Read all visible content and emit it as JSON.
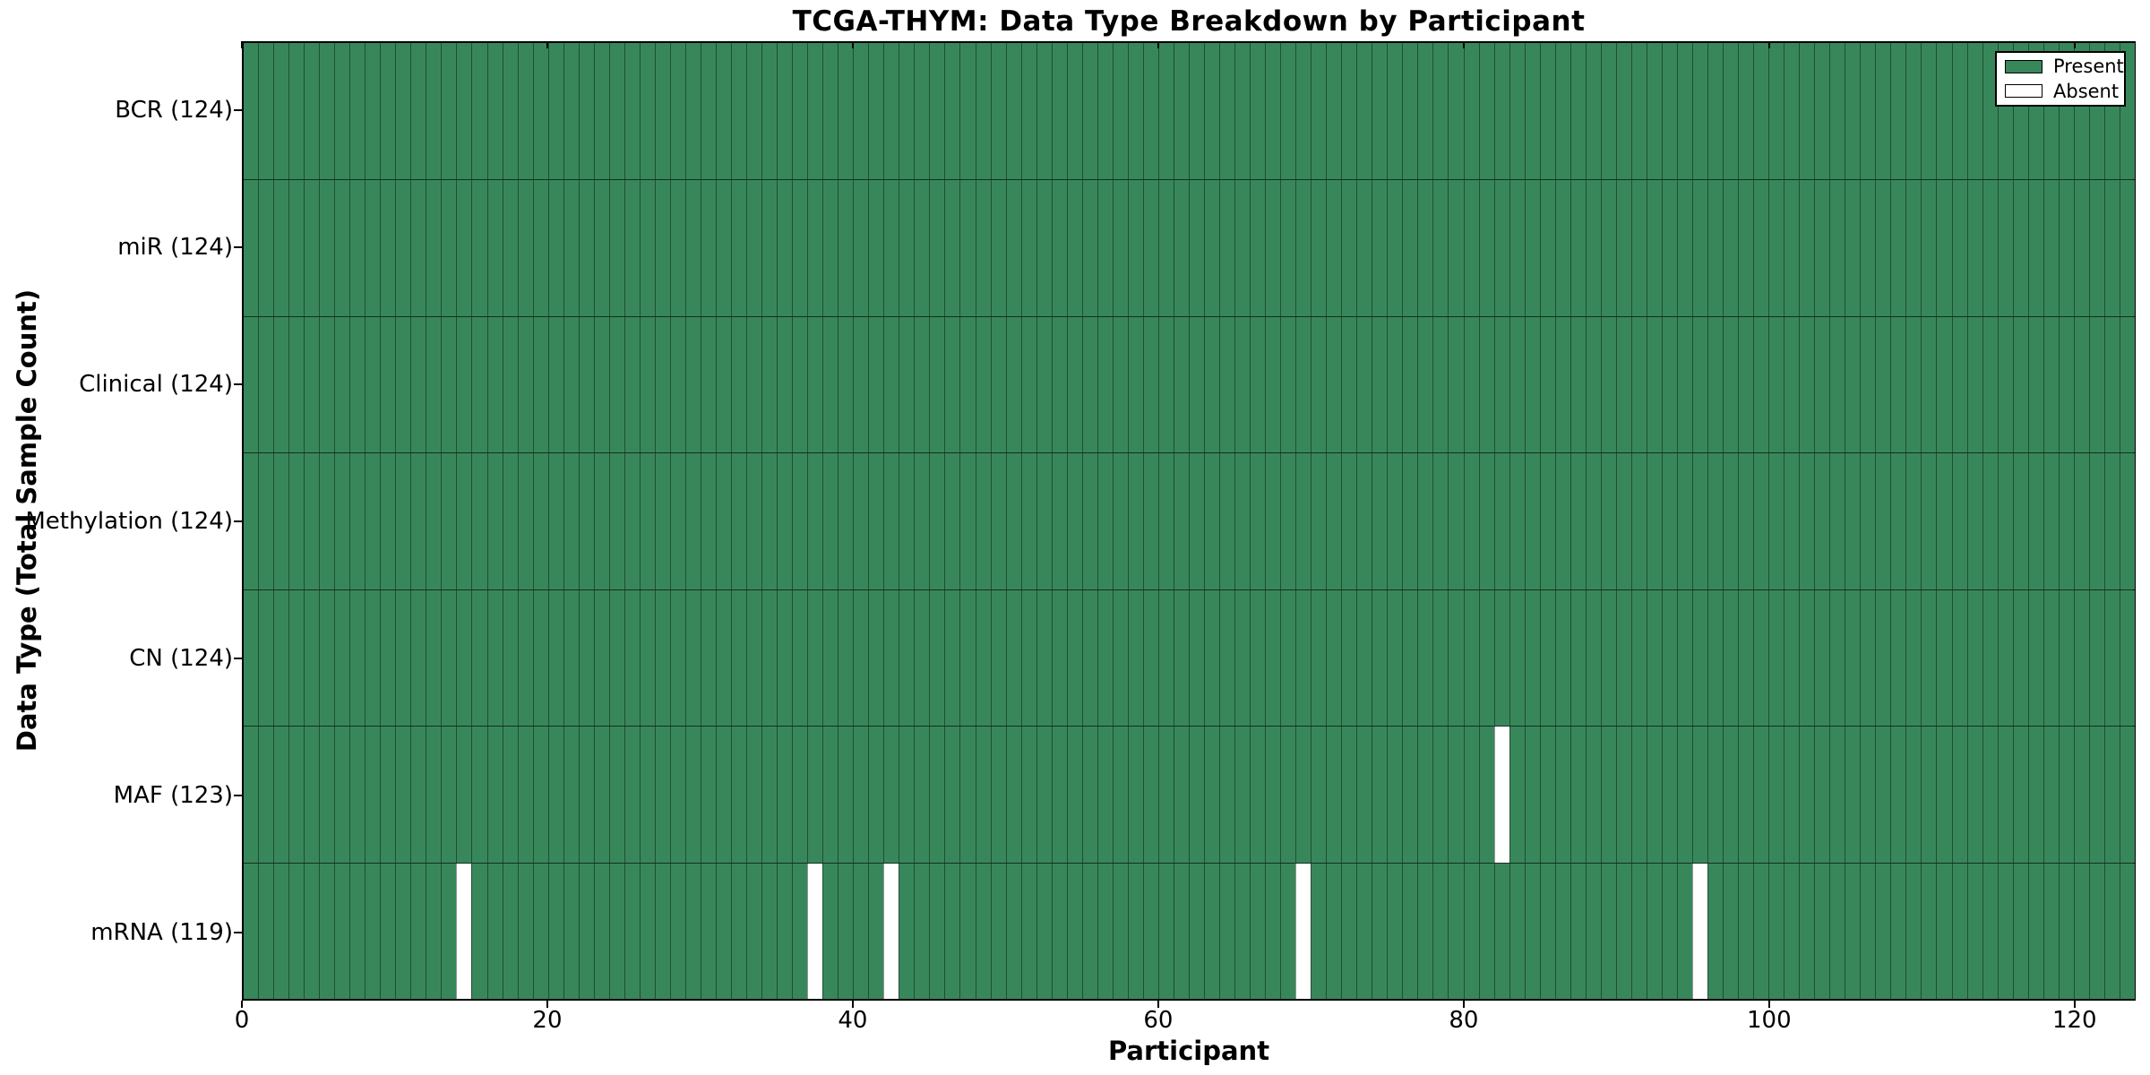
{
  "chart_data": {
    "type": "heatmap",
    "title": "TCGA-THYM: Data Type Breakdown by Participant",
    "xlabel": "Participant",
    "ylabel": "Data Type (Total Sample Count)",
    "n_participants": 124,
    "x_range": [
      0,
      124
    ],
    "x_ticks": [
      0,
      20,
      40,
      60,
      80,
      100,
      120
    ],
    "grid": false,
    "rows": [
      {
        "data_type": "BCR",
        "label": "BCR (124)",
        "present_count": 124,
        "absent_participants": []
      },
      {
        "data_type": "miR",
        "label": "miR (124)",
        "present_count": 124,
        "absent_participants": []
      },
      {
        "data_type": "Clinical",
        "label": "Clinical (124)",
        "present_count": 124,
        "absent_participants": []
      },
      {
        "data_type": "Methylation",
        "label": "Methylation (124)",
        "present_count": 124,
        "absent_participants": []
      },
      {
        "data_type": "CN",
        "label": "CN (124)",
        "present_count": 124,
        "absent_participants": []
      },
      {
        "data_type": "MAF",
        "label": "MAF (123)",
        "present_count": 123,
        "absent_participants": [
          82
        ]
      },
      {
        "data_type": "mRNA",
        "label": "mRNA (119)",
        "present_count": 119,
        "absent_participants": [
          14,
          37,
          42,
          69,
          95
        ]
      }
    ],
    "legend": {
      "position": "upper right",
      "entries": [
        {
          "label": "Present",
          "color": "#38875b"
        },
        {
          "label": "Absent",
          "color": "#ffffff"
        }
      ]
    },
    "colors": {
      "present": "#38875b",
      "absent": "#ffffff",
      "spine": "#000000"
    }
  }
}
